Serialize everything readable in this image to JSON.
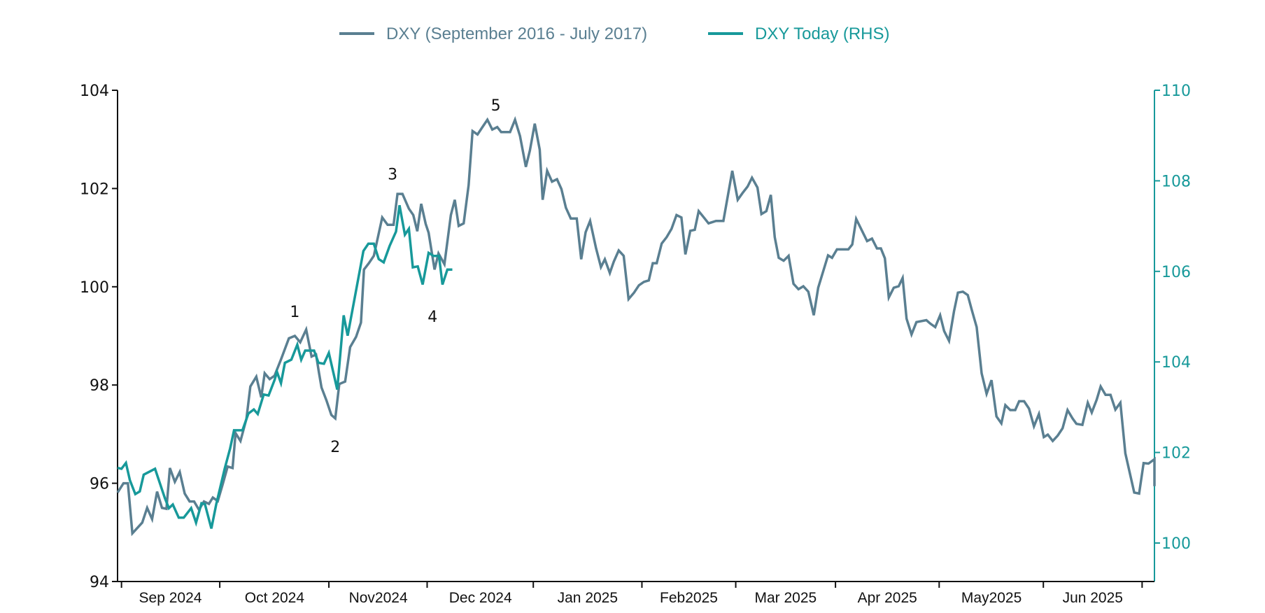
{
  "chart_data": {
    "type": "line",
    "title": "",
    "colors": {
      "series_a": "#5a7f91",
      "series_b": "#17999a",
      "axis_left": "#111111",
      "axis_right": "#17999a"
    },
    "legend": {
      "placement": "top-center",
      "entries": [
        "DXY (September 2016 - July 2017)",
        "DXY Today (RHS)"
      ]
    },
    "x_axis": {
      "domain": [
        0,
        210
      ],
      "unit": "trading-day index",
      "ticks": [
        0.8,
        20.7,
        42.8,
        62.7,
        84.2,
        106.2,
        125.2,
        145.4,
        166.4,
        187.5,
        207.5
      ],
      "labels": [
        {
          "text": "Sep 2024",
          "at": 10.7
        },
        {
          "text": "Oct 2024",
          "at": 31.8
        },
        {
          "text": "Nov2024",
          "at": 52.8
        },
        {
          "text": "Dec 2024",
          "at": 73.5
        },
        {
          "text": "Jan 2025",
          "at": 95.2
        },
        {
          "text": "Feb2025",
          "at": 115.7
        },
        {
          "text": "Mar 2025",
          "at": 135.3
        },
        {
          "text": "Apr 2025",
          "at": 155.9
        },
        {
          "text": "May2025",
          "at": 177
        },
        {
          "text": "Jun 2025",
          "at": 197.5
        }
      ]
    },
    "y_left": {
      "range": [
        94,
        104
      ],
      "ticks": [
        "94",
        "96",
        "98",
        "100",
        "102",
        "104"
      ]
    },
    "y_right": {
      "range": [
        99.15,
        110
      ],
      "ticks": [
        "100",
        "102",
        "104",
        "106",
        "108",
        "110"
      ]
    },
    "annotations": [
      {
        "text": "1",
        "x": 35.9,
        "y": 99.5
      },
      {
        "text": "2",
        "x": 44.1,
        "y": 96.75
      },
      {
        "text": "3",
        "x": 55.7,
        "y": 102.3
      },
      {
        "text": "4",
        "x": 63.8,
        "y": 99.4
      },
      {
        "text": "5",
        "x": 76.6,
        "y": 103.7
      }
    ],
    "series": [
      {
        "name": "DXY (September 2016 - July 2017)",
        "axis": "left",
        "points": [
          [
            0,
            95.81
          ],
          [
            1.2,
            96.0
          ],
          [
            2.1,
            96.0
          ],
          [
            3,
            94.98
          ],
          [
            5,
            95.2
          ],
          [
            6,
            95.5
          ],
          [
            7,
            95.27
          ],
          [
            8,
            95.83
          ],
          [
            9,
            95.5
          ],
          [
            9.9,
            95.48
          ],
          [
            10.6,
            96.31
          ],
          [
            11.6,
            96.03
          ],
          [
            12.6,
            96.23
          ],
          [
            13.6,
            95.79
          ],
          [
            14.6,
            95.63
          ],
          [
            15.5,
            95.63
          ],
          [
            16.5,
            95.46
          ],
          [
            17.5,
            95.63
          ],
          [
            18.5,
            95.58
          ],
          [
            19.3,
            95.71
          ],
          [
            20.3,
            95.64
          ],
          [
            21.3,
            95.98
          ],
          [
            22.3,
            96.34
          ],
          [
            23.3,
            96.31
          ],
          [
            23.9,
            97.02
          ],
          [
            24.9,
            96.86
          ],
          [
            26.1,
            97.31
          ],
          [
            26.9,
            97.97
          ],
          [
            28.1,
            98.17
          ],
          [
            29.1,
            97.75
          ],
          [
            29.8,
            98.24
          ],
          [
            30.8,
            98.12
          ],
          [
            31.8,
            98.19
          ],
          [
            33.1,
            98.52
          ],
          [
            34.7,
            98.95
          ],
          [
            35.9,
            99.0
          ],
          [
            37,
            98.87
          ],
          [
            38.2,
            99.13
          ],
          [
            39.3,
            98.58
          ],
          [
            40.2,
            98.62
          ],
          [
            40.8,
            98.25
          ],
          [
            41.3,
            97.95
          ],
          [
            42.3,
            97.69
          ],
          [
            43.3,
            97.39
          ],
          [
            44.1,
            97.32
          ],
          [
            44.9,
            98.02
          ],
          [
            46.1,
            98.07
          ],
          [
            47.1,
            98.77
          ],
          [
            48.3,
            98.98
          ],
          [
            49.3,
            99.27
          ],
          [
            49.9,
            100.35
          ],
          [
            50.9,
            100.48
          ],
          [
            51.9,
            100.63
          ],
          [
            53.6,
            101.41
          ],
          [
            54.7,
            101.26
          ],
          [
            55.9,
            101.26
          ],
          [
            56.7,
            101.89
          ],
          [
            57.7,
            101.89
          ],
          [
            59,
            101.59
          ],
          [
            59.9,
            101.46
          ],
          [
            60.7,
            101.13
          ],
          [
            61.5,
            101.69
          ],
          [
            62.4,
            101.28
          ],
          [
            63,
            101.1
          ],
          [
            64.2,
            100.35
          ],
          [
            65,
            100.68
          ],
          [
            66.2,
            100.46
          ],
          [
            67.5,
            101.46
          ],
          [
            68.3,
            101.77
          ],
          [
            69.1,
            101.24
          ],
          [
            70.1,
            101.29
          ],
          [
            71.1,
            102.07
          ],
          [
            71.9,
            103.17
          ],
          [
            72.9,
            103.1
          ],
          [
            73.9,
            103.25
          ],
          [
            74.9,
            103.4
          ],
          [
            75.9,
            103.2
          ],
          [
            76.9,
            103.25
          ],
          [
            77.7,
            103.15
          ],
          [
            79.5,
            103.15
          ],
          [
            80.5,
            103.4
          ],
          [
            81.5,
            103.07
          ],
          [
            82.7,
            102.44
          ],
          [
            83.5,
            102.77
          ],
          [
            84.5,
            103.32
          ],
          [
            85.5,
            102.79
          ],
          [
            86.1,
            101.77
          ],
          [
            87,
            102.36
          ],
          [
            88,
            102.14
          ],
          [
            89,
            102.19
          ],
          [
            89.9,
            101.99
          ],
          [
            90.8,
            101.61
          ],
          [
            91.8,
            101.39
          ],
          [
            93,
            101.39
          ],
          [
            93.9,
            100.56
          ],
          [
            94.8,
            101.11
          ],
          [
            95.7,
            101.34
          ],
          [
            96.9,
            100.79
          ],
          [
            97.9,
            100.4
          ],
          [
            98.7,
            100.56
          ],
          [
            99.7,
            100.28
          ],
          [
            100.5,
            100.51
          ],
          [
            101.5,
            100.74
          ],
          [
            102.5,
            100.63
          ],
          [
            103.5,
            99.75
          ],
          [
            104.6,
            99.88
          ],
          [
            105.6,
            100.03
          ],
          [
            106.6,
            100.1
          ],
          [
            107.6,
            100.13
          ],
          [
            108.4,
            100.48
          ],
          [
            109.2,
            100.48
          ],
          [
            110.2,
            100.88
          ],
          [
            111.2,
            101.01
          ],
          [
            112.2,
            101.18
          ],
          [
            113.2,
            101.46
          ],
          [
            114.2,
            101.41
          ],
          [
            115,
            100.66
          ],
          [
            116,
            101.14
          ],
          [
            116.9,
            101.16
          ],
          [
            117.7,
            101.54
          ],
          [
            118.5,
            101.44
          ],
          [
            119.7,
            101.29
          ],
          [
            121.2,
            101.34
          ],
          [
            122.7,
            101.34
          ],
          [
            124.5,
            102.36
          ],
          [
            125.6,
            101.77
          ],
          [
            126.6,
            101.91
          ],
          [
            127.6,
            102.04
          ],
          [
            128.5,
            102.22
          ],
          [
            129.6,
            102.02
          ],
          [
            130.4,
            101.48
          ],
          [
            131.4,
            101.54
          ],
          [
            132.3,
            101.87
          ],
          [
            133.1,
            101.01
          ],
          [
            133.9,
            100.59
          ],
          [
            134.9,
            100.53
          ],
          [
            135.9,
            100.63
          ],
          [
            136.9,
            100.06
          ],
          [
            137.9,
            99.95
          ],
          [
            138.9,
            100.01
          ],
          [
            139.9,
            99.9
          ],
          [
            141,
            99.42
          ],
          [
            141.9,
            99.98
          ],
          [
            143.9,
            100.64
          ],
          [
            144.7,
            100.59
          ],
          [
            145.7,
            100.76
          ],
          [
            148,
            100.76
          ],
          [
            148.8,
            100.86
          ],
          [
            149.6,
            101.38
          ],
          [
            151.8,
            100.93
          ],
          [
            152.8,
            100.98
          ],
          [
            153.8,
            100.78
          ],
          [
            154.6,
            100.78
          ],
          [
            155.4,
            100.58
          ],
          [
            156.2,
            99.78
          ],
          [
            157.2,
            99.98
          ],
          [
            158.2,
            100.01
          ],
          [
            159,
            100.18
          ],
          [
            159.8,
            99.35
          ],
          [
            160.8,
            99.03
          ],
          [
            161.8,
            99.28
          ],
          [
            163.8,
            99.32
          ],
          [
            164.6,
            99.25
          ],
          [
            165.6,
            99.18
          ],
          [
            166.6,
            99.42
          ],
          [
            167.4,
            99.1
          ],
          [
            168.4,
            98.9
          ],
          [
            169.4,
            99.5
          ],
          [
            170.2,
            99.88
          ],
          [
            171.2,
            99.9
          ],
          [
            172.2,
            99.83
          ],
          [
            173,
            99.53
          ],
          [
            174,
            99.18
          ],
          [
            175,
            98.24
          ],
          [
            176,
            97.82
          ],
          [
            177,
            98.1
          ],
          [
            178,
            97.36
          ],
          [
            179,
            97.22
          ],
          [
            179.8,
            97.59
          ],
          [
            180.8,
            97.49
          ],
          [
            181.8,
            97.49
          ],
          [
            182.6,
            97.67
          ],
          [
            183.6,
            97.67
          ],
          [
            184.6,
            97.52
          ],
          [
            185.6,
            97.16
          ],
          [
            186.6,
            97.41
          ],
          [
            187.6,
            96.94
          ],
          [
            188.4,
            96.99
          ],
          [
            189.4,
            96.86
          ],
          [
            190.4,
            96.97
          ],
          [
            191.4,
            97.12
          ],
          [
            192.4,
            97.49
          ],
          [
            193.4,
            97.32
          ],
          [
            194.2,
            97.21
          ],
          [
            195.4,
            97.19
          ],
          [
            196.5,
            97.64
          ],
          [
            197.3,
            97.44
          ],
          [
            198.3,
            97.7
          ],
          [
            199.1,
            97.97
          ],
          [
            200.1,
            97.8
          ],
          [
            201.1,
            97.8
          ],
          [
            202.1,
            97.5
          ],
          [
            203.1,
            97.64
          ],
          [
            204.1,
            96.61
          ],
          [
            205.9,
            95.81
          ],
          [
            206.9,
            95.79
          ],
          [
            207.8,
            96.41
          ],
          [
            208.8,
            96.4
          ],
          [
            210,
            96.49
          ],
          [
            210,
            95.94
          ]
        ]
      },
      {
        "name": "DXY Today (RHS)",
        "axis": "right",
        "points": [
          [
            0,
            101.66
          ],
          [
            0.8,
            101.64
          ],
          [
            1.7,
            101.77
          ],
          [
            2.5,
            101.39
          ],
          [
            3.6,
            101.08
          ],
          [
            4.5,
            101.14
          ],
          [
            5.3,
            101.51
          ],
          [
            7.6,
            101.64
          ],
          [
            9.6,
            100.99
          ],
          [
            10.4,
            100.77
          ],
          [
            11.2,
            100.85
          ],
          [
            12.4,
            100.56
          ],
          [
            13.4,
            100.56
          ],
          [
            14.9,
            100.77
          ],
          [
            15.9,
            100.45
          ],
          [
            17,
            100.88
          ],
          [
            17.7,
            100.86
          ],
          [
            19,
            100.32
          ],
          [
            20,
            100.86
          ],
          [
            21.7,
            101.64
          ],
          [
            22.8,
            102.09
          ],
          [
            23.6,
            102.49
          ],
          [
            25.3,
            102.49
          ],
          [
            26.5,
            102.86
          ],
          [
            27.6,
            102.95
          ],
          [
            28.4,
            102.85
          ],
          [
            29.6,
            103.28
          ],
          [
            30.6,
            103.26
          ],
          [
            31.8,
            103.6
          ],
          [
            32.3,
            103.78
          ],
          [
            33.1,
            103.53
          ],
          [
            33.9,
            103.98
          ],
          [
            35.2,
            104.05
          ],
          [
            36.4,
            104.38
          ],
          [
            37.2,
            104.05
          ],
          [
            38,
            104.25
          ],
          [
            39.8,
            104.25
          ],
          [
            40.7,
            103.98
          ],
          [
            41.8,
            103.96
          ],
          [
            42.8,
            104.2
          ],
          [
            44.5,
            103.39
          ],
          [
            45.8,
            105.03
          ],
          [
            46.6,
            104.58
          ],
          [
            49.8,
            106.45
          ],
          [
            50.8,
            106.61
          ],
          [
            51.9,
            106.61
          ],
          [
            52.9,
            106.27
          ],
          [
            53.9,
            106.2
          ],
          [
            55.1,
            106.56
          ],
          [
            56.4,
            106.88
          ],
          [
            57.1,
            107.46
          ],
          [
            58.2,
            106.81
          ],
          [
            59,
            106.94
          ],
          [
            59.8,
            106.09
          ],
          [
            60.8,
            106.11
          ],
          [
            61.8,
            105.71
          ],
          [
            63,
            106.41
          ],
          [
            64,
            106.34
          ],
          [
            65.1,
            106.34
          ],
          [
            65.8,
            105.71
          ],
          [
            66.8,
            106.04
          ],
          [
            67.8,
            106.04
          ]
        ]
      }
    ]
  }
}
